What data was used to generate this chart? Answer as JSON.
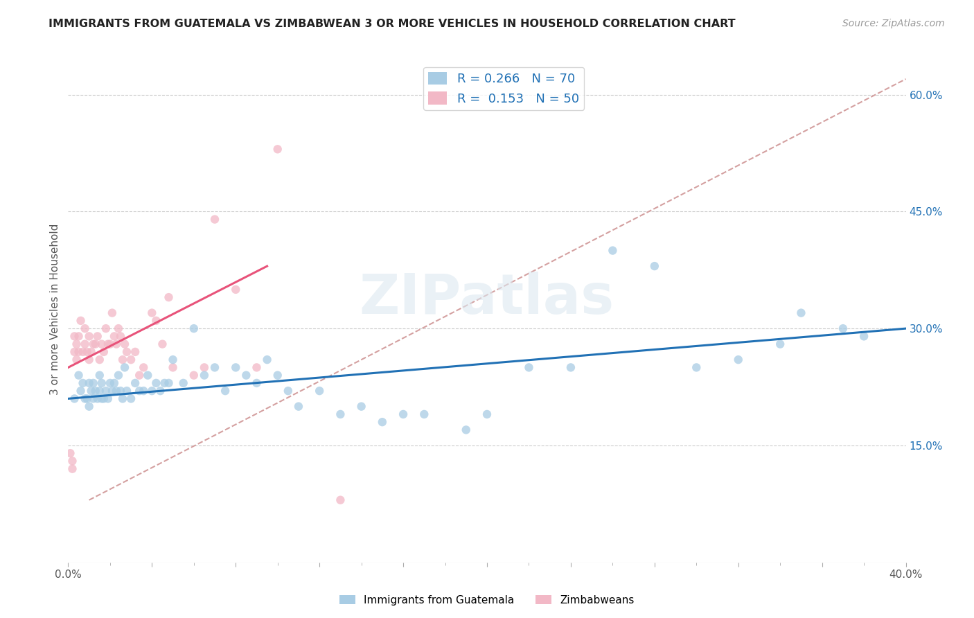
{
  "title": "IMMIGRANTS FROM GUATEMALA VS ZIMBABWEAN 3 OR MORE VEHICLES IN HOUSEHOLD CORRELATION CHART",
  "source": "Source: ZipAtlas.com",
  "ylabel": "3 or more Vehicles in Household",
  "xlim": [
    0.0,
    0.4
  ],
  "ylim": [
    0.0,
    0.65
  ],
  "ytick_labels": [
    "15.0%",
    "30.0%",
    "45.0%",
    "60.0%"
  ],
  "ytick_vals": [
    0.15,
    0.3,
    0.45,
    0.6
  ],
  "blue_color": "#a8cce4",
  "pink_color": "#f2b8c6",
  "blue_line_color": "#2171b5",
  "pink_line_color": "#e8537a",
  "dashed_line_color": "#d4a0a0",
  "R_blue": 0.266,
  "N_blue": 70,
  "R_pink": 0.153,
  "N_pink": 50,
  "legend_label_blue": "Immigrants from Guatemala",
  "legend_label_pink": "Zimbabweans",
  "watermark": "ZIPatlas",
  "blue_scatter_x": [
    0.003,
    0.005,
    0.006,
    0.007,
    0.008,
    0.009,
    0.01,
    0.01,
    0.011,
    0.012,
    0.012,
    0.013,
    0.014,
    0.015,
    0.015,
    0.016,
    0.016,
    0.017,
    0.018,
    0.019,
    0.02,
    0.021,
    0.022,
    0.023,
    0.024,
    0.025,
    0.026,
    0.027,
    0.028,
    0.03,
    0.032,
    0.034,
    0.036,
    0.038,
    0.04,
    0.042,
    0.044,
    0.046,
    0.048,
    0.05,
    0.055,
    0.06,
    0.065,
    0.07,
    0.075,
    0.08,
    0.085,
    0.09,
    0.095,
    0.1,
    0.105,
    0.11,
    0.12,
    0.13,
    0.14,
    0.15,
    0.16,
    0.17,
    0.19,
    0.2,
    0.22,
    0.24,
    0.26,
    0.28,
    0.3,
    0.32,
    0.34,
    0.35,
    0.37,
    0.38
  ],
  "blue_scatter_y": [
    0.21,
    0.24,
    0.22,
    0.23,
    0.21,
    0.21,
    0.23,
    0.2,
    0.22,
    0.21,
    0.23,
    0.22,
    0.21,
    0.22,
    0.24,
    0.21,
    0.23,
    0.21,
    0.22,
    0.21,
    0.23,
    0.22,
    0.23,
    0.22,
    0.24,
    0.22,
    0.21,
    0.25,
    0.22,
    0.21,
    0.23,
    0.22,
    0.22,
    0.24,
    0.22,
    0.23,
    0.22,
    0.23,
    0.23,
    0.26,
    0.23,
    0.3,
    0.24,
    0.25,
    0.22,
    0.25,
    0.24,
    0.23,
    0.26,
    0.24,
    0.22,
    0.2,
    0.22,
    0.19,
    0.2,
    0.18,
    0.19,
    0.19,
    0.17,
    0.19,
    0.25,
    0.25,
    0.4,
    0.38,
    0.25,
    0.26,
    0.28,
    0.32,
    0.3,
    0.29
  ],
  "pink_scatter_x": [
    0.001,
    0.002,
    0.002,
    0.003,
    0.003,
    0.004,
    0.004,
    0.005,
    0.005,
    0.006,
    0.007,
    0.008,
    0.008,
    0.009,
    0.01,
    0.01,
    0.011,
    0.012,
    0.013,
    0.014,
    0.015,
    0.016,
    0.017,
    0.018,
    0.019,
    0.02,
    0.021,
    0.022,
    0.023,
    0.024,
    0.025,
    0.026,
    0.027,
    0.028,
    0.03,
    0.032,
    0.034,
    0.036,
    0.04,
    0.042,
    0.045,
    0.048,
    0.05,
    0.06,
    0.065,
    0.07,
    0.08,
    0.09,
    0.1,
    0.13
  ],
  "pink_scatter_y": [
    0.14,
    0.13,
    0.12,
    0.27,
    0.29,
    0.26,
    0.28,
    0.27,
    0.29,
    0.31,
    0.27,
    0.28,
    0.3,
    0.27,
    0.26,
    0.29,
    0.27,
    0.28,
    0.28,
    0.29,
    0.26,
    0.28,
    0.27,
    0.3,
    0.28,
    0.28,
    0.32,
    0.29,
    0.28,
    0.3,
    0.29,
    0.26,
    0.28,
    0.27,
    0.26,
    0.27,
    0.24,
    0.25,
    0.32,
    0.31,
    0.28,
    0.34,
    0.25,
    0.24,
    0.25,
    0.44,
    0.35,
    0.25,
    0.53,
    0.08
  ],
  "blue_trend_x": [
    0.0,
    0.4
  ],
  "blue_trend_y": [
    0.21,
    0.3
  ],
  "pink_trend_x": [
    0.0,
    0.095
  ],
  "pink_trend_y": [
    0.25,
    0.38
  ],
  "dashed_trend_x": [
    0.01,
    0.4
  ],
  "dashed_trend_y": [
    0.08,
    0.62
  ]
}
